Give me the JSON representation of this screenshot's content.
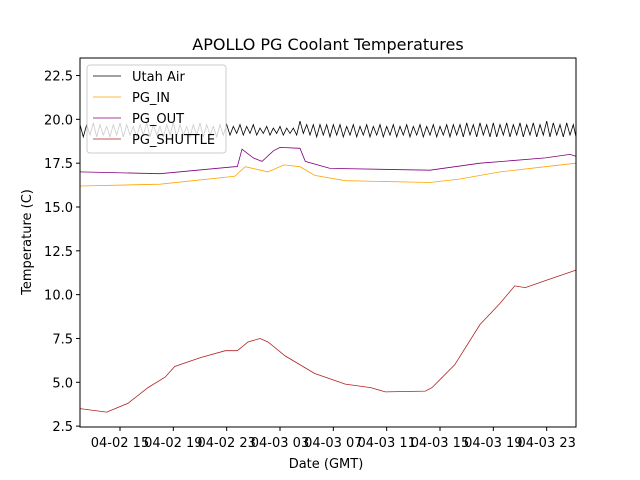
{
  "chart_data": {
    "type": "line",
    "title": "APOLLO PG Coolant Temperatures",
    "xlabel": "Date (GMT)",
    "ylabel": "Temperature (C)",
    "x_units": "hours since 04-02 12:00",
    "xlim": [
      0,
      37.2
    ],
    "ylim": [
      2.45,
      23.5
    ],
    "xticks": [
      {
        "x": 3,
        "label": "04-02 15"
      },
      {
        "x": 7,
        "label": "04-02 19"
      },
      {
        "x": 11,
        "label": "04-02 23"
      },
      {
        "x": 15,
        "label": "04-03 03"
      },
      {
        "x": 19,
        "label": "04-03 07"
      },
      {
        "x": 23,
        "label": "04-03 11"
      },
      {
        "x": 27,
        "label": "04-03 15"
      },
      {
        "x": 31,
        "label": "04-03 19"
      },
      {
        "x": 35,
        "label": "04-03 23"
      }
    ],
    "yticks": [
      {
        "y": 2.5,
        "label": "2.5"
      },
      {
        "y": 5,
        "label": "5.0"
      },
      {
        "y": 7.5,
        "label": "7.5"
      },
      {
        "y": 10,
        "label": "10.0"
      },
      {
        "y": 12.5,
        "label": "12.5"
      },
      {
        "y": 15,
        "label": "15.0"
      },
      {
        "y": 17.5,
        "label": "17.5"
      },
      {
        "y": 20,
        "label": "20.0"
      },
      {
        "y": 22.5,
        "label": "22.5"
      }
    ],
    "legend": {
      "location": "upper-left"
    },
    "series": [
      {
        "name": "Utah Air",
        "color": "#000000",
        "x_start": 0,
        "x_step": 0.25,
        "values": [
          19.7,
          19.0,
          19.7,
          19.1,
          19.8,
          19.0,
          19.7,
          19.1,
          19.6,
          19.0,
          19.7,
          19.1,
          19.8,
          19.0,
          19.7,
          19.1,
          19.6,
          19.0,
          19.7,
          19.1,
          19.8,
          19.0,
          19.7,
          19.1,
          19.6,
          19.0,
          19.7,
          19.1,
          19.8,
          19.0,
          19.7,
          19.1,
          19.6,
          19.0,
          19.7,
          19.1,
          19.8,
          19.0,
          19.7,
          19.1,
          19.6,
          19.0,
          19.7,
          19.1,
          19.7,
          19.1,
          19.6,
          19.2,
          19.7,
          19.1,
          19.6,
          19.2,
          19.7,
          19.1,
          19.5,
          19.2,
          19.6,
          19.1,
          19.5,
          19.2,
          19.6,
          19.1,
          19.5,
          19.2,
          19.5,
          19.1,
          19.9,
          19.2,
          19.7,
          19.1,
          19.7,
          19.0,
          19.7,
          19.1,
          19.7,
          19.0,
          19.7,
          19.1,
          19.7,
          19.0,
          19.6,
          19.1,
          19.7,
          19.0,
          19.6,
          19.1,
          19.7,
          19.0,
          19.6,
          19.1,
          19.7,
          19.0,
          19.6,
          19.1,
          19.7,
          19.0,
          19.6,
          19.1,
          19.7,
          19.0,
          19.6,
          19.1,
          19.7,
          19.0,
          19.6,
          19.1,
          19.7,
          19.0,
          19.6,
          19.1,
          19.7,
          19.0,
          19.7,
          19.1,
          19.7,
          19.0,
          19.8,
          19.1,
          19.7,
          19.0,
          19.8,
          19.1,
          19.7,
          19.0,
          19.8,
          19.0,
          19.7,
          19.1,
          19.8,
          19.0,
          19.7,
          19.1,
          19.8,
          19.0,
          19.7,
          19.1,
          19.8,
          19.0,
          19.7,
          19.1,
          19.9,
          19.0,
          19.8,
          19.1,
          19.7,
          19.0,
          19.8,
          19.1,
          19.7,
          19.0,
          19.0
        ]
      },
      {
        "name": "PG_IN",
        "color": "#ffa500",
        "points": [
          [
            0,
            16.2
          ],
          [
            6,
            16.3
          ],
          [
            11.6,
            16.75
          ],
          [
            12.4,
            17.3
          ],
          [
            14.1,
            17.0
          ],
          [
            15.3,
            17.4
          ],
          [
            16.5,
            17.3
          ],
          [
            17.6,
            16.8
          ],
          [
            19.9,
            16.5
          ],
          [
            26.25,
            16.4
          ],
          [
            28.5,
            16.6
          ],
          [
            31.5,
            17.0
          ],
          [
            34.9,
            17.3
          ],
          [
            37.2,
            17.5
          ]
        ]
      },
      {
        "name": "PG_OUT",
        "color": "#800080",
        "points": [
          [
            0,
            17.0
          ],
          [
            6,
            16.9
          ],
          [
            11.6,
            17.3
          ],
          [
            11.8,
            17.3
          ],
          [
            12.15,
            18.3
          ],
          [
            13.0,
            17.8
          ],
          [
            13.65,
            17.6
          ],
          [
            14.5,
            18.2
          ],
          [
            15,
            18.4
          ],
          [
            16.5,
            18.35
          ],
          [
            16.9,
            17.6
          ],
          [
            18.75,
            17.2
          ],
          [
            26.25,
            17.1
          ],
          [
            30,
            17.5
          ],
          [
            34.9,
            17.8
          ],
          [
            36.75,
            18.0
          ],
          [
            37.2,
            17.9
          ]
        ]
      },
      {
        "name": "PG_SHUTTLE",
        "color": "#b22222",
        "points": [
          [
            0,
            3.5
          ],
          [
            2,
            3.3
          ],
          [
            3.6,
            3.8
          ],
          [
            5.1,
            4.7
          ],
          [
            6.4,
            5.3
          ],
          [
            7.1,
            5.9
          ],
          [
            9,
            6.4
          ],
          [
            10.9,
            6.8
          ],
          [
            11.8,
            6.8
          ],
          [
            12.6,
            7.3
          ],
          [
            13.5,
            7.5
          ],
          [
            14.1,
            7.3
          ],
          [
            15.4,
            6.5
          ],
          [
            17.6,
            5.5
          ],
          [
            19.9,
            4.9
          ],
          [
            21.8,
            4.7
          ],
          [
            22.9,
            4.45
          ],
          [
            25.9,
            4.5
          ],
          [
            26.4,
            4.7
          ],
          [
            28.1,
            6.0
          ],
          [
            30,
            8.3
          ],
          [
            31.5,
            9.5
          ],
          [
            32.6,
            10.5
          ],
          [
            33.4,
            10.4
          ],
          [
            34.9,
            10.8
          ],
          [
            37.2,
            11.4
          ]
        ]
      }
    ]
  }
}
